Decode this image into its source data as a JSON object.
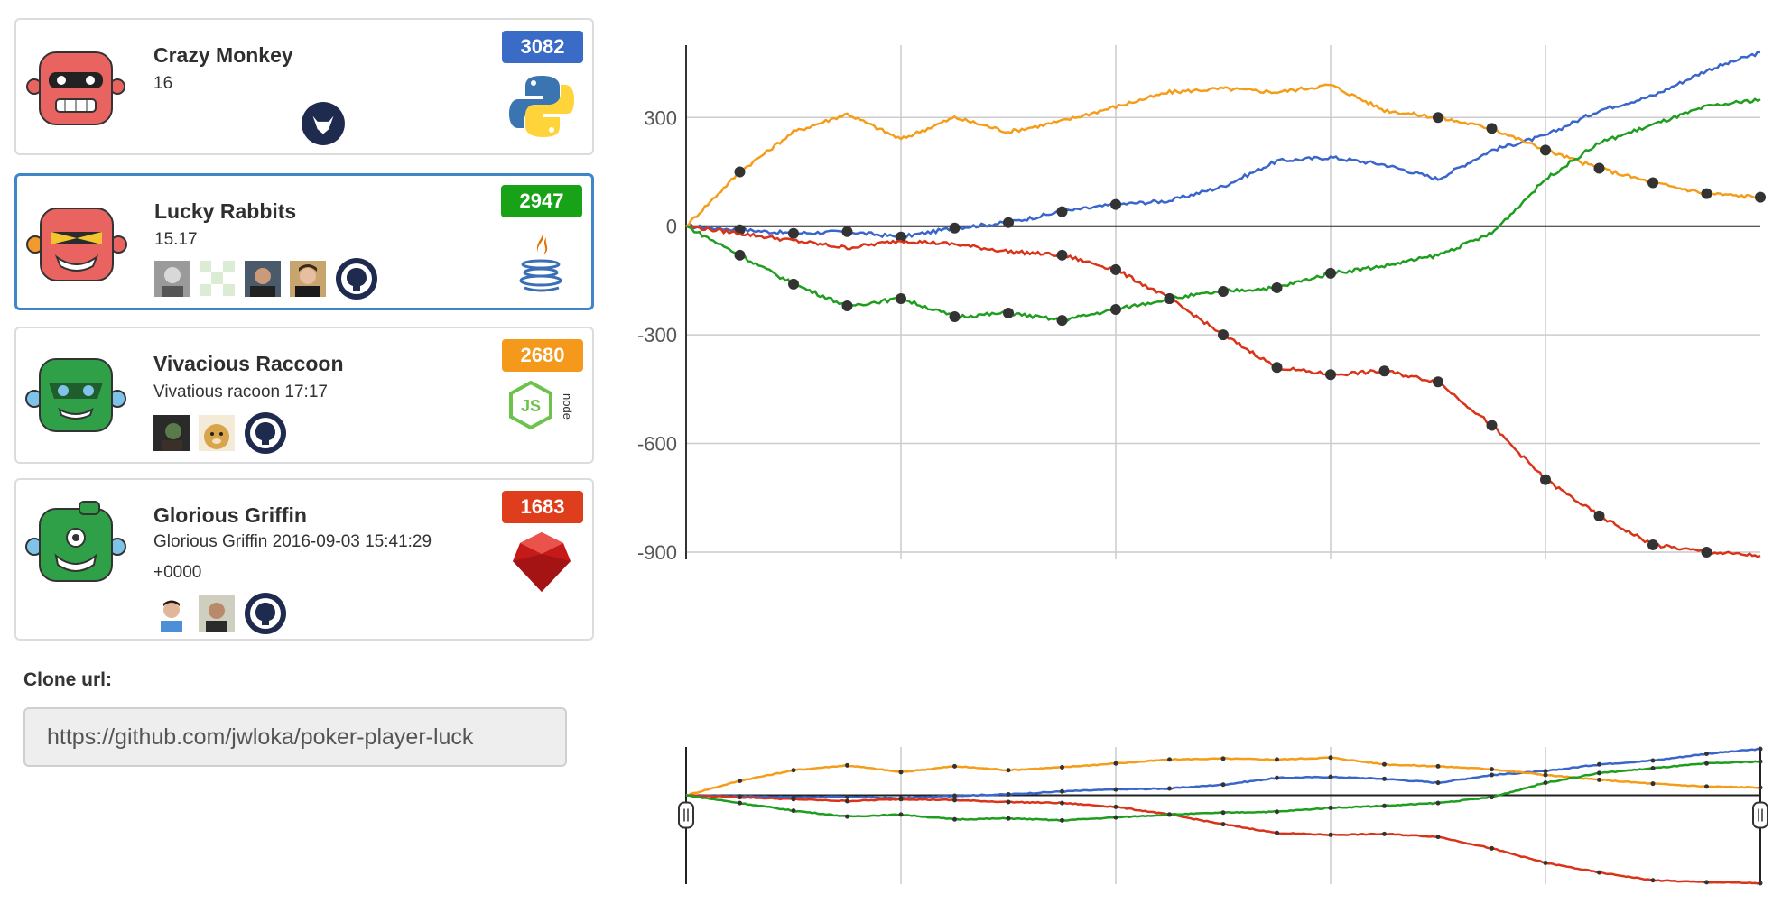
{
  "teams": [
    {
      "name": "Crazy Monkey",
      "subtitle": [
        "16"
      ],
      "score": "3082",
      "score_color": "#3a6bc7",
      "language": "python",
      "robot_color": "#e96360",
      "members": []
    },
    {
      "name": "Lucky Rabbits",
      "subtitle": [
        "15.17"
      ],
      "score": "2947",
      "score_color": "#17a217",
      "language": "java",
      "robot_color": "#e96360",
      "members": [
        "avatar-1",
        "avatar-2",
        "avatar-3",
        "avatar-4"
      ],
      "selected": true
    },
    {
      "name": "Vivacious Raccoon",
      "subtitle": [
        "Vivatious racoon 17:17"
      ],
      "score": "2680",
      "score_color": "#f5991d",
      "language": "nodejs",
      "robot_color": "#2fa048",
      "members": [
        "avatar-5",
        "avatar-6"
      ]
    },
    {
      "name": "Glorious Griffin",
      "subtitle": [
        "Glorious Griffin 2016-09-03 15:41:29",
        "+0000"
      ],
      "score": "1683",
      "score_color": "#df3e1d",
      "language": "ruby",
      "robot_color": "#2fa048",
      "members": [
        "avatar-7",
        "avatar-8"
      ]
    }
  ],
  "clone": {
    "label": "Clone url:",
    "url": "https://github.com/jwloka/poker-player-luck"
  },
  "chart_data": {
    "type": "line",
    "title": "",
    "xlabel": "",
    "ylabel": "",
    "ylim": [
      -920,
      500
    ],
    "yticks": [
      "300",
      "0",
      "-300",
      "-600",
      "-900"
    ],
    "x": [
      0,
      5,
      10,
      15,
      20,
      25,
      30,
      35,
      40,
      45,
      50,
      55,
      60,
      65,
      70,
      75,
      80,
      85,
      90,
      95,
      100
    ],
    "grid": true,
    "series": [
      {
        "color": "#3a66cc",
        "values": [
          0,
          -10,
          -20,
          -15,
          -30,
          -5,
          10,
          40,
          60,
          70,
          110,
          180,
          190,
          170,
          130,
          210,
          250,
          320,
          360,
          430,
          480
        ]
      },
      {
        "color": "#f59d1a",
        "values": [
          0,
          150,
          260,
          310,
          240,
          300,
          260,
          290,
          330,
          370,
          380,
          370,
          390,
          320,
          300,
          270,
          210,
          160,
          120,
          90,
          80
        ]
      },
      {
        "color": "#d9341a",
        "values": [
          0,
          -20,
          -40,
          -60,
          -40,
          -50,
          -70,
          -80,
          -120,
          -200,
          -300,
          -390,
          -410,
          -400,
          -430,
          -550,
          -700,
          -800,
          -880,
          -900,
          -910
        ]
      },
      {
        "color": "#1f9d1f",
        "values": [
          0,
          -80,
          -160,
          -220,
          -200,
          -250,
          -240,
          -260,
          -230,
          -200,
          -180,
          -170,
          -130,
          -110,
          -80,
          -20,
          130,
          230,
          280,
          330,
          350
        ]
      }
    ]
  }
}
